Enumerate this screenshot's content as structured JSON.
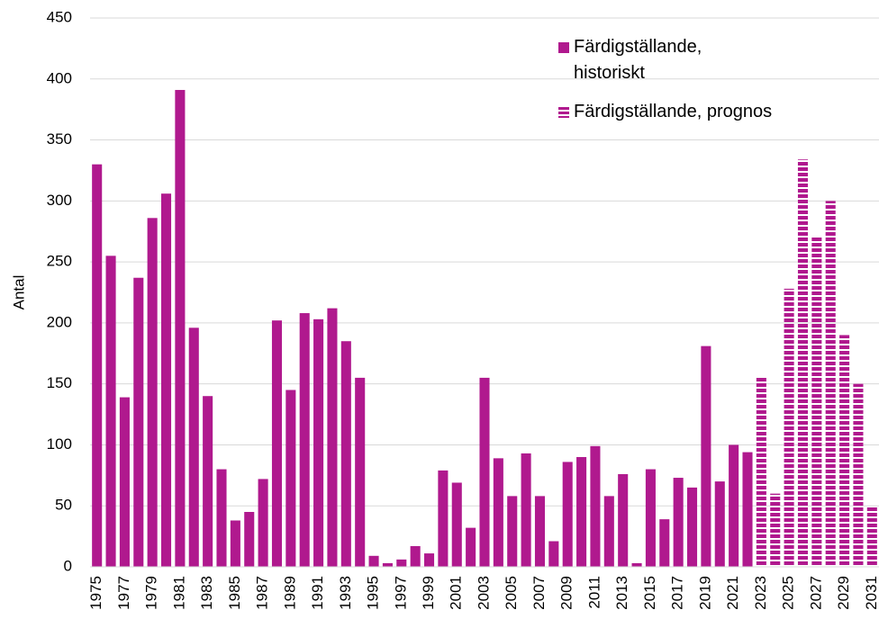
{
  "chart_data": {
    "type": "bar",
    "ylabel": "Antal",
    "categories": [
      "1975",
      null,
      "1977",
      null,
      "1979",
      null,
      "1981",
      null,
      "1983",
      null,
      "1985",
      null,
      "1987",
      null,
      "1989",
      null,
      "1991",
      null,
      "1993",
      null,
      "1995",
      null,
      "1997",
      null,
      "1999",
      null,
      "2001",
      null,
      "2003",
      null,
      "2005",
      null,
      "2007",
      null,
      "2009",
      null,
      "2011",
      null,
      "2013",
      null,
      "2015",
      null,
      "2017",
      null,
      "2019",
      null,
      "2021",
      null,
      "2023",
      null,
      "2025",
      null,
      "2027",
      null,
      "2029",
      null,
      "2031"
    ],
    "series": [
      {
        "name": "Färdigställande,\nhistoriskt",
        "color": "#b0198e",
        "values": [
          330,
          255,
          139,
          237,
          286,
          306,
          391,
          196,
          140,
          80,
          38,
          45,
          72,
          202,
          145,
          208,
          203,
          212,
          185,
          155,
          9,
          3,
          6,
          17,
          11,
          79,
          69,
          32,
          155,
          89,
          58,
          93,
          58,
          21,
          86,
          90,
          99,
          58,
          76,
          3,
          80,
          39,
          73,
          65,
          181,
          70,
          100,
          94,
          null,
          null,
          null,
          null,
          null,
          null,
          null,
          null,
          null
        ]
      },
      {
        "name": "Färdigställande, prognos",
        "color": "#b0198e",
        "pattern": "striped",
        "values": [
          null,
          null,
          null,
          null,
          null,
          null,
          null,
          null,
          null,
          null,
          null,
          null,
          null,
          null,
          null,
          null,
          null,
          null,
          null,
          null,
          null,
          null,
          null,
          null,
          null,
          null,
          null,
          null,
          null,
          null,
          null,
          null,
          null,
          null,
          null,
          null,
          null,
          null,
          null,
          null,
          null,
          null,
          null,
          null,
          null,
          null,
          null,
          null,
          156,
          60,
          228,
          334,
          270,
          300,
          190,
          150,
          50
        ]
      }
    ],
    "ylim": [
      0,
      450
    ],
    "yticks": [
      0,
      50,
      100,
      150,
      200,
      250,
      300,
      350,
      400,
      450
    ],
    "grid": true,
    "legend": "upper right"
  }
}
